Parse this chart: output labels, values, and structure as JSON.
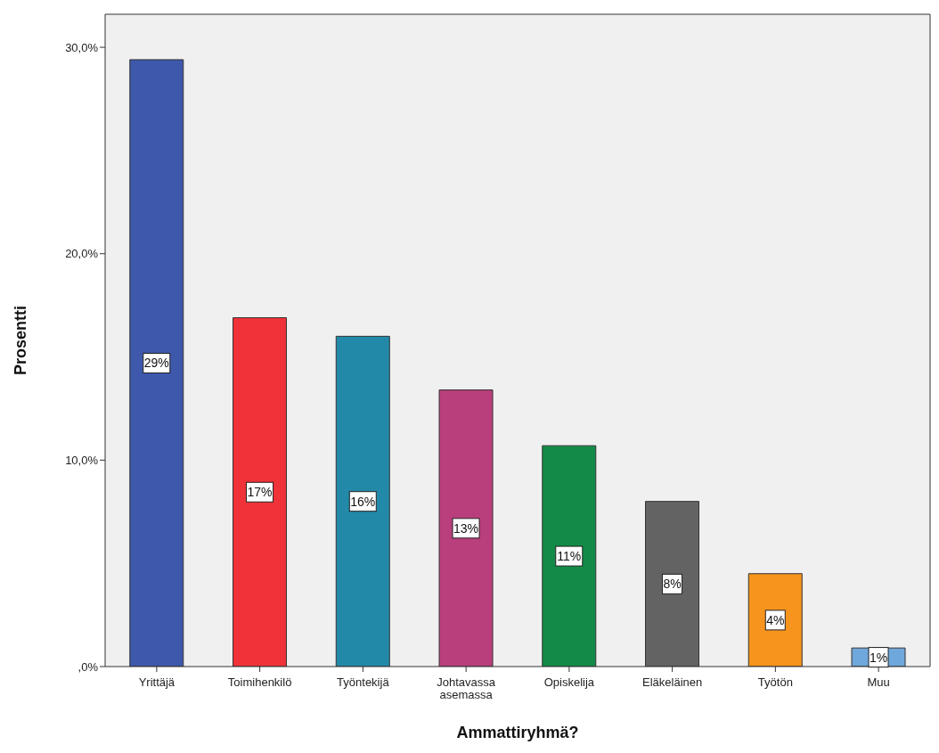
{
  "chart_data": {
    "type": "bar",
    "xlabel": "Ammattiryhmä?",
    "ylabel": "Prosentti",
    "categories": [
      "Yrittäjä",
      "Toimihenkilö",
      "Työntekijä",
      "Johtavassa asemassa",
      "Opiskelija",
      "Eläkeläinen",
      "Työtön",
      "Muu"
    ],
    "values": [
      29.4,
      16.9,
      16.0,
      13.4,
      10.7,
      8.0,
      4.5,
      0.9
    ],
    "value_labels": [
      "29%",
      "17%",
      "16%",
      "13%",
      "11%",
      "8%",
      "4%",
      "1%"
    ],
    "colors": [
      "#3e58ac",
      "#ef3338",
      "#2289a8",
      "#b93f7c",
      "#138b47",
      "#636363",
      "#f7941d",
      "#6fa8dc"
    ],
    "ylim": [
      0,
      31.6
    ],
    "yticks": [
      {
        "value": 0,
        "label": ",0%"
      },
      {
        "value": 10,
        "label": "10,0%"
      },
      {
        "value": 20,
        "label": "20,0%"
      },
      {
        "value": 30,
        "label": "30,0%"
      }
    ],
    "grid": false,
    "legend": false
  }
}
